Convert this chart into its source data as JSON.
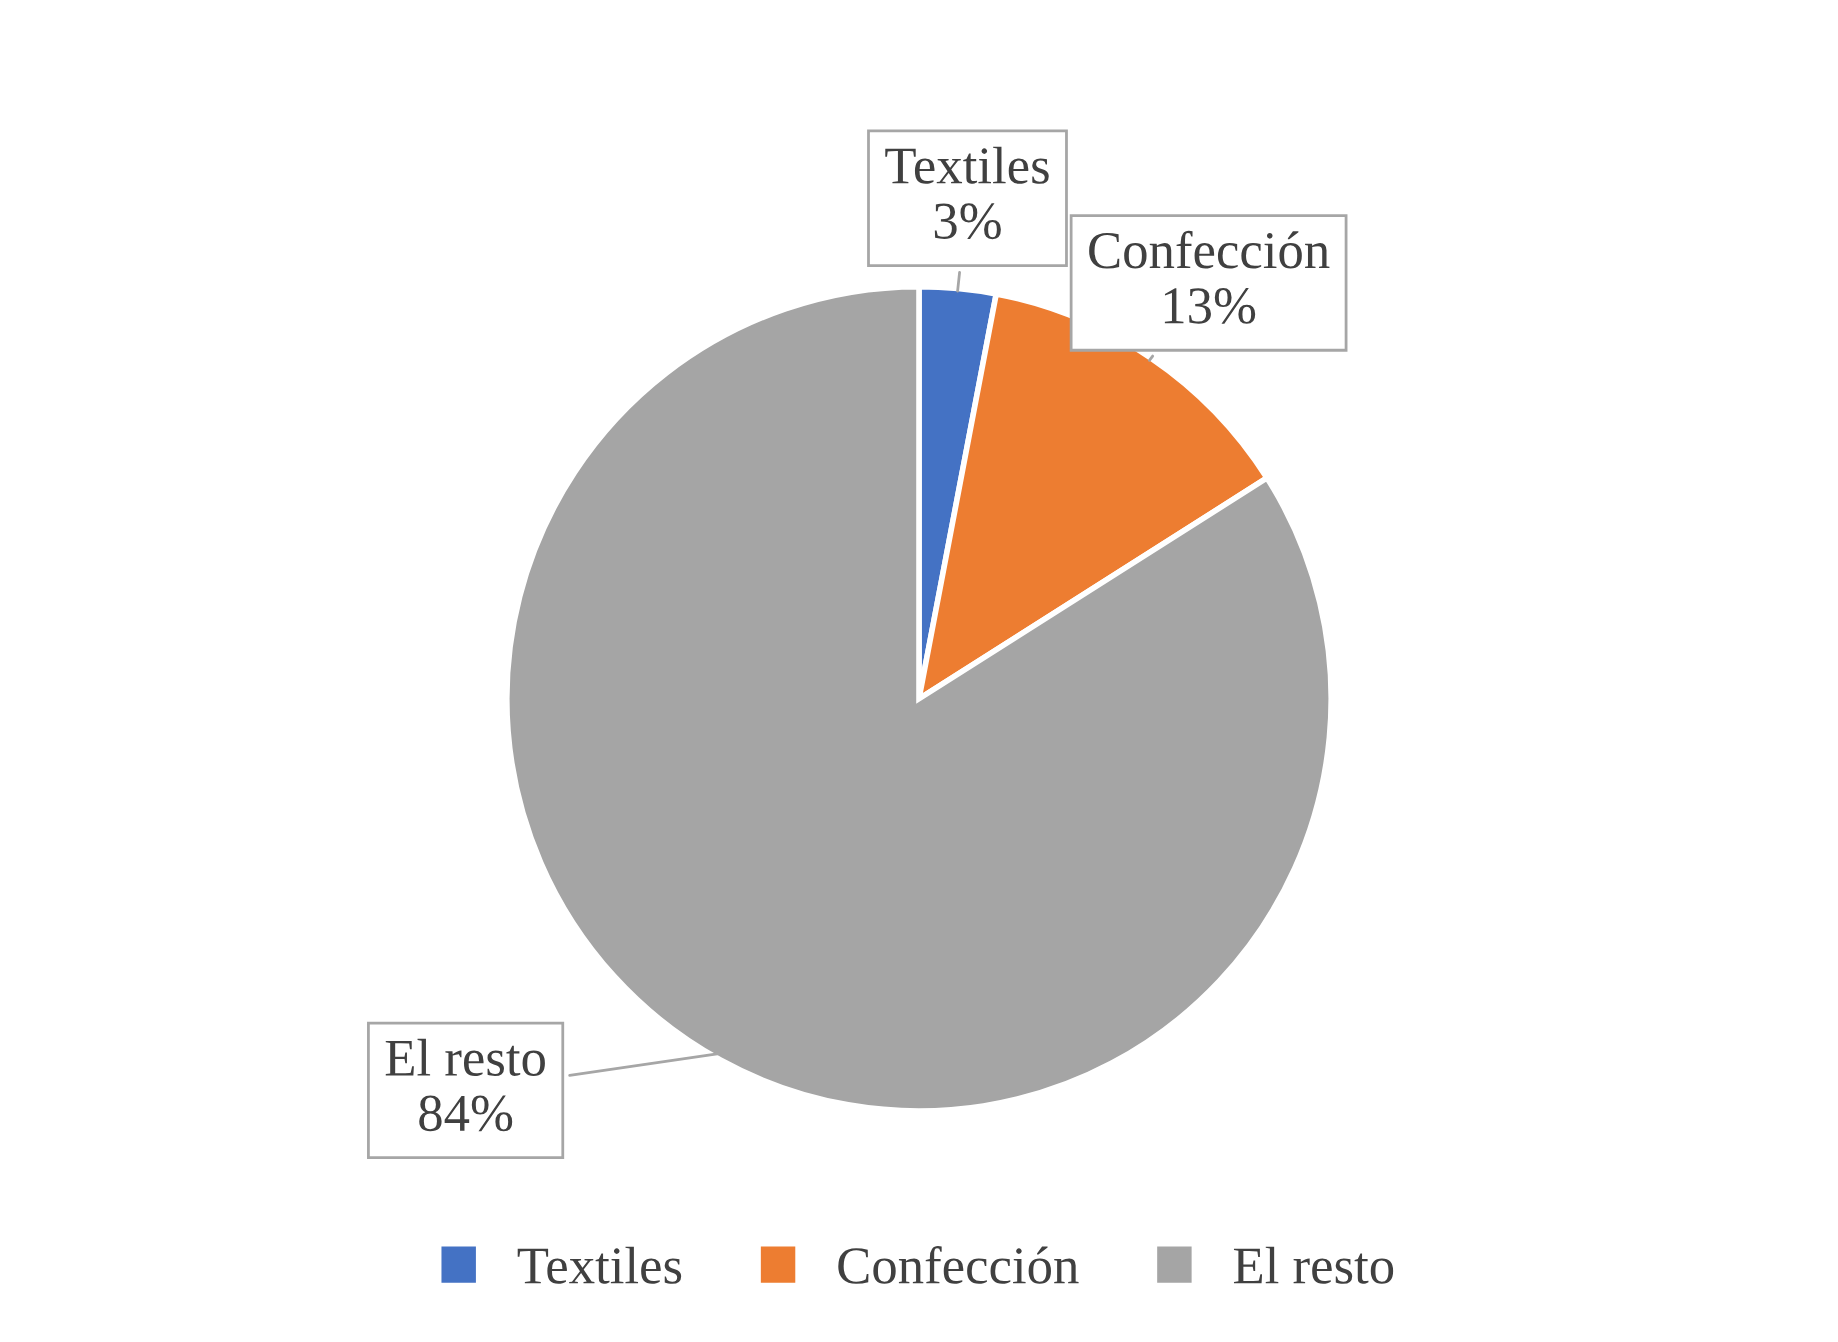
{
  "chart_data": {
    "type": "pie",
    "categories": [
      "Textiles",
      "Confección",
      "El resto"
    ],
    "values": [
      3,
      13,
      84
    ],
    "value_labels": [
      "3%",
      "13%",
      "84%"
    ],
    "colors": [
      "#4472c4",
      "#ed7d31",
      "#a5a5a5"
    ],
    "legend": "bottom"
  }
}
